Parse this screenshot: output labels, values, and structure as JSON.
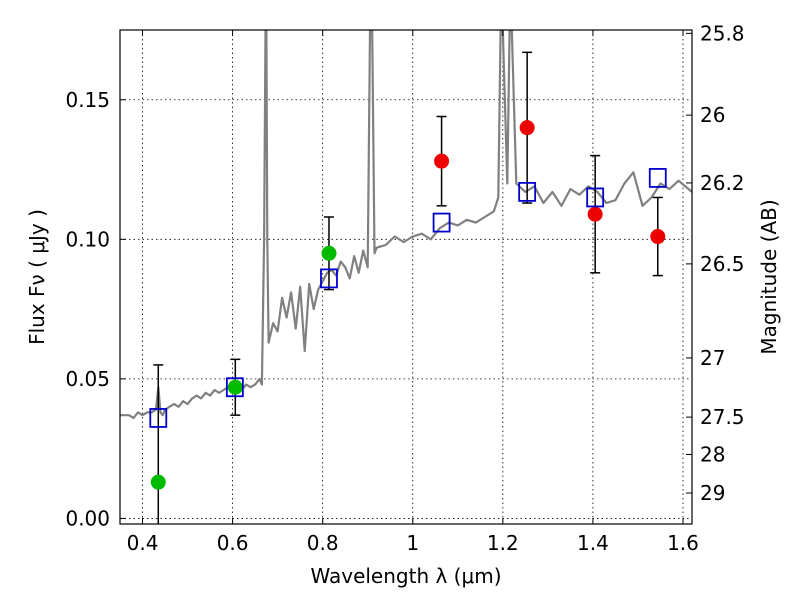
{
  "chart_data": {
    "type": "scatter",
    "xlabel": "Wavelength  λ (μm)",
    "ylabel": "Flux  Fν  ( μJy )",
    "y2label": "Magnitude (AB)",
    "xlim": [
      0.35,
      1.62
    ],
    "ylim": [
      -0.002,
      0.175
    ],
    "grid": true,
    "x_ticks": [
      0.4,
      0.6,
      0.8,
      1.0,
      1.2,
      1.4,
      1.6
    ],
    "x_tick_labels": [
      "0.4",
      "0.6",
      "0.8",
      "1",
      "1.2",
      "1.4",
      "1.6"
    ],
    "y_ticks": [
      0.0,
      0.05,
      0.1,
      0.15
    ],
    "y_tick_labels": [
      "0.00",
      "0.05",
      "0.10",
      "0.15"
    ],
    "y2_ticks": [
      {
        "label": "25.8",
        "flux": 0.1738
      },
      {
        "label": "26",
        "flux": 0.1445
      },
      {
        "label": "26.2",
        "flux": 0.1202
      },
      {
        "label": "26.5",
        "flux": 0.0912
      },
      {
        "label": "27",
        "flux": 0.0575
      },
      {
        "label": "27.5",
        "flux": 0.0363
      },
      {
        "label": "28",
        "flux": 0.0229
      },
      {
        "label": "29",
        "flux": 0.0091
      }
    ],
    "colors": {
      "model": "#808080",
      "optical_points": "#00bb00",
      "nir_points": "#ee0000",
      "model_boxes": "#0000cc",
      "errorbars": "#000000"
    },
    "series": [
      {
        "kind": "model-spectrum",
        "x": [
          0.35,
          0.36,
          0.37,
          0.38,
          0.39,
          0.4,
          0.41,
          0.42,
          0.43,
          0.435,
          0.44,
          0.445,
          0.45,
          0.46,
          0.47,
          0.48,
          0.49,
          0.5,
          0.51,
          0.52,
          0.53,
          0.54,
          0.55,
          0.56,
          0.57,
          0.58,
          0.59,
          0.6,
          0.61,
          0.62,
          0.63,
          0.64,
          0.65,
          0.66,
          0.665,
          0.67,
          0.673,
          0.675,
          0.677,
          0.68,
          0.69,
          0.7,
          0.71,
          0.72,
          0.73,
          0.74,
          0.75,
          0.76,
          0.77,
          0.78,
          0.79,
          0.8,
          0.81,
          0.82,
          0.83,
          0.84,
          0.85,
          0.86,
          0.87,
          0.88,
          0.89,
          0.9,
          0.905,
          0.91,
          0.915,
          0.92,
          0.94,
          0.96,
          0.98,
          1.0,
          1.02,
          1.04,
          1.06,
          1.08,
          1.1,
          1.12,
          1.14,
          1.16,
          1.18,
          1.19,
          1.195,
          1.2,
          1.21,
          1.215,
          1.22,
          1.23,
          1.25,
          1.27,
          1.29,
          1.31,
          1.33,
          1.35,
          1.37,
          1.39,
          1.41,
          1.43,
          1.45,
          1.47,
          1.49,
          1.51,
          1.53,
          1.55,
          1.57,
          1.59,
          1.62
        ],
        "y": [
          0.037,
          0.037,
          0.037,
          0.036,
          0.038,
          0.037,
          0.038,
          0.038,
          0.039,
          0.047,
          0.038,
          0.037,
          0.039,
          0.04,
          0.041,
          0.04,
          0.042,
          0.041,
          0.043,
          0.044,
          0.043,
          0.045,
          0.044,
          0.046,
          0.045,
          0.046,
          0.047,
          0.046,
          0.047,
          0.046,
          0.048,
          0.047,
          0.048,
          0.05,
          0.048,
          0.1,
          0.175,
          0.175,
          0.1,
          0.063,
          0.07,
          0.067,
          0.079,
          0.072,
          0.081,
          0.068,
          0.083,
          0.06,
          0.084,
          0.075,
          0.082,
          0.085,
          0.088,
          0.089,
          0.087,
          0.092,
          0.09,
          0.086,
          0.094,
          0.088,
          0.096,
          0.09,
          0.175,
          0.175,
          0.095,
          0.097,
          0.098,
          0.101,
          0.099,
          0.101,
          0.102,
          0.1,
          0.104,
          0.106,
          0.105,
          0.107,
          0.106,
          0.108,
          0.11,
          0.115,
          0.175,
          0.175,
          0.12,
          0.175,
          0.175,
          0.12,
          0.117,
          0.119,
          0.113,
          0.117,
          0.112,
          0.118,
          0.116,
          0.119,
          0.117,
          0.113,
          0.114,
          0.12,
          0.124,
          0.112,
          0.115,
          0.12,
          0.118,
          0.121,
          0.117
        ]
      },
      {
        "kind": "model-boxes",
        "x": [
          0.435,
          0.605,
          0.814,
          1.064,
          1.254,
          1.405,
          1.544
        ],
        "y": [
          0.036,
          0.047,
          0.086,
          0.106,
          0.117,
          0.115,
          0.122
        ]
      },
      {
        "kind": "observed-optical",
        "x": [
          0.435,
          0.606,
          0.814
        ],
        "y": [
          0.013,
          0.047,
          0.095
        ],
        "err": [
          0.042,
          0.01,
          0.013
        ]
      },
      {
        "kind": "observed-nir",
        "x": [
          1.064,
          1.254,
          1.405,
          1.544
        ],
        "y": [
          0.128,
          0.14,
          0.109,
          0.101
        ],
        "err": [
          0.016,
          0.027,
          0.021,
          0.014
        ]
      }
    ]
  }
}
